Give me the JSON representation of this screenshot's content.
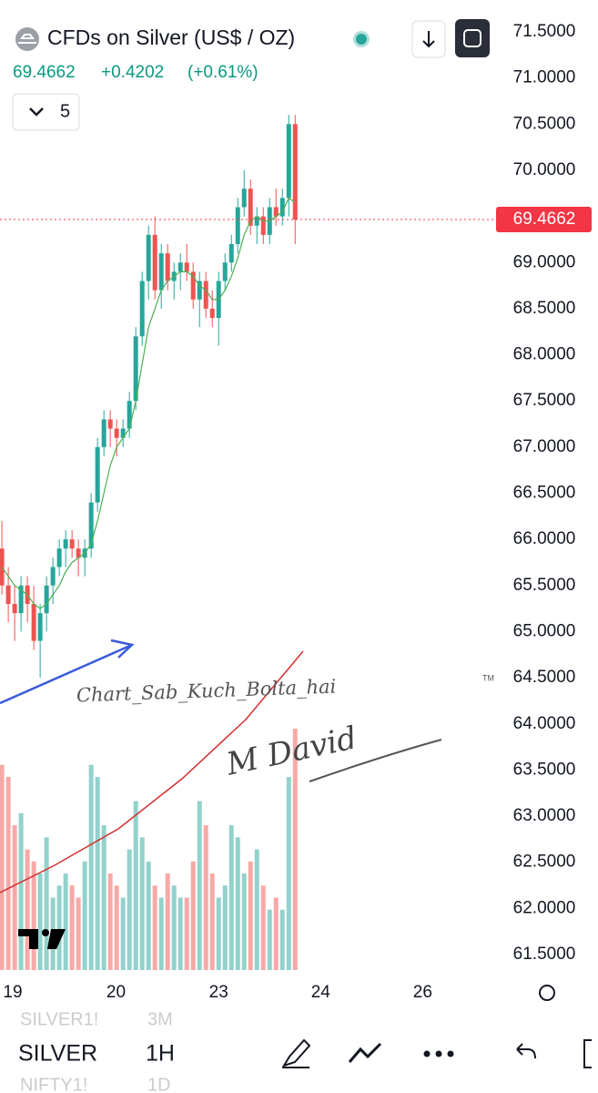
{
  "header": {
    "title": "CFDs on Silver (US$ / OZ)",
    "price": "69.4662",
    "change": "+0.4202",
    "change_pct": "(+0.61%)",
    "interval_button": "5"
  },
  "chart_data": {
    "type": "candlestick",
    "up_color": "#26a69a",
    "down_color": "#ef5350",
    "candles": [
      [
        65.9,
        66.2,
        65.4,
        65.5
      ],
      [
        65.5,
        65.7,
        65.1,
        65.3
      ],
      [
        65.3,
        65.5,
        64.9,
        65.2
      ],
      [
        65.2,
        65.6,
        65.0,
        65.5
      ],
      [
        65.5,
        65.6,
        65.1,
        65.3
      ],
      [
        65.3,
        65.5,
        64.8,
        64.9
      ],
      [
        64.9,
        65.3,
        64.5,
        65.2
      ],
      [
        65.2,
        65.6,
        65.0,
        65.5
      ],
      [
        65.5,
        65.8,
        65.3,
        65.7
      ],
      [
        65.7,
        66.0,
        65.6,
        65.9
      ],
      [
        65.9,
        66.1,
        65.7,
        66.0
      ],
      [
        66.0,
        66.1,
        65.8,
        65.9
      ],
      [
        65.9,
        66.0,
        65.6,
        65.8
      ],
      [
        65.8,
        66.0,
        65.6,
        65.9
      ],
      [
        65.9,
        66.5,
        65.8,
        66.4
      ],
      [
        66.4,
        67.1,
        66.3,
        67.0
      ],
      [
        67.0,
        67.4,
        66.9,
        67.3
      ],
      [
        67.3,
        67.4,
        67.0,
        67.2
      ],
      [
        67.2,
        67.3,
        66.9,
        67.1
      ],
      [
        67.1,
        67.3,
        67.0,
        67.2
      ],
      [
        67.2,
        67.6,
        67.1,
        67.5
      ],
      [
        67.5,
        68.3,
        67.4,
        68.2
      ],
      [
        68.2,
        68.9,
        68.1,
        68.8
      ],
      [
        68.8,
        69.4,
        68.6,
        69.3
      ],
      [
        69.3,
        69.5,
        68.6,
        68.7
      ],
      [
        68.7,
        69.2,
        68.5,
        69.1
      ],
      [
        69.1,
        69.2,
        68.7,
        68.8
      ],
      [
        68.8,
        69.0,
        68.6,
        68.9
      ],
      [
        68.9,
        69.1,
        68.7,
        69.0
      ],
      [
        69.0,
        69.2,
        68.8,
        68.9
      ],
      [
        68.9,
        69.0,
        68.5,
        68.6
      ],
      [
        68.6,
        68.9,
        68.3,
        68.8
      ],
      [
        68.8,
        68.9,
        68.4,
        68.5
      ],
      [
        68.5,
        68.7,
        68.3,
        68.4
      ],
      [
        68.4,
        68.9,
        68.1,
        68.8
      ],
      [
        68.8,
        69.1,
        68.7,
        69.0
      ],
      [
        69.0,
        69.3,
        68.9,
        69.2
      ],
      [
        69.2,
        69.7,
        69.1,
        69.6
      ],
      [
        69.6,
        70.0,
        69.5,
        69.8
      ],
      [
        69.8,
        69.9,
        69.3,
        69.4
      ],
      [
        69.4,
        69.6,
        69.2,
        69.5
      ],
      [
        69.5,
        69.6,
        69.2,
        69.3
      ],
      [
        69.3,
        69.7,
        69.2,
        69.6
      ],
      [
        69.6,
        69.8,
        69.4,
        69.5
      ],
      [
        69.5,
        69.8,
        69.4,
        69.7
      ],
      [
        69.7,
        70.6,
        69.5,
        70.5
      ],
      [
        70.5,
        70.6,
        69.2,
        69.4662
      ]
    ],
    "ma": {
      "color": "#4caf50",
      "values": [
        65.7,
        65.6,
        65.5,
        65.45,
        65.4,
        65.3,
        65.25,
        65.3,
        65.4,
        65.5,
        65.65,
        65.75,
        65.8,
        65.85,
        65.95,
        66.2,
        66.5,
        66.8,
        67.0,
        67.1,
        67.2,
        67.5,
        67.9,
        68.3,
        68.5,
        68.7,
        68.8,
        68.85,
        68.9,
        68.9,
        68.85,
        68.75,
        68.7,
        68.6,
        68.6,
        68.7,
        68.85,
        69.05,
        69.3,
        69.45,
        69.5,
        69.45,
        69.45,
        69.5,
        69.55,
        69.7,
        69.65
      ]
    },
    "volume": {
      "ylim": [
        0,
        100
      ],
      "values": [
        85,
        80,
        60,
        65,
        50,
        45,
        40,
        55,
        30,
        35,
        40,
        35,
        30,
        45,
        85,
        80,
        60,
        40,
        35,
        30,
        50,
        70,
        55,
        45,
        35,
        30,
        40,
        35,
        30,
        30,
        45,
        70,
        60,
        40,
        30,
        35,
        60,
        55,
        40,
        45,
        50,
        35,
        25,
        30,
        25,
        80,
        100
      ]
    },
    "ylim": [
      61.5,
      71.5
    ],
    "yticks": [
      {
        "value": 71.5,
        "label": "71.5000"
      },
      {
        "value": 71,
        "label": "71.0000"
      },
      {
        "value": 70.5,
        "label": "70.5000"
      },
      {
        "value": 70,
        "label": "70.0000"
      },
      {
        "value": 69,
        "label": "69.0000"
      },
      {
        "value": 68.5,
        "label": "68.5000"
      },
      {
        "value": 68,
        "label": "68.0000"
      },
      {
        "value": 67.5,
        "label": "67.5000"
      },
      {
        "value": 67,
        "label": "67.0000"
      },
      {
        "value": 66.5,
        "label": "66.5000"
      },
      {
        "value": 66,
        "label": "66.0000"
      },
      {
        "value": 65.5,
        "label": "65.5000"
      },
      {
        "value": 65,
        "label": "65.0000"
      },
      {
        "value": 64.5,
        "label": "64.5000"
      },
      {
        "value": 64,
        "label": "64.0000"
      },
      {
        "value": 63.5,
        "label": "63.5000"
      },
      {
        "value": 63,
        "label": "63.0000"
      },
      {
        "value": 62.5,
        "label": "62.5000"
      },
      {
        "value": 62,
        "label": "62.0000"
      },
      {
        "value": 61.5,
        "label": "61.5000"
      }
    ],
    "xlim": [
      -0.3,
      76.8
    ],
    "xticks": [
      {
        "value": 1.7,
        "label": "19"
      },
      {
        "value": 17.9,
        "label": "20"
      },
      {
        "value": 34,
        "label": "23"
      },
      {
        "value": 50,
        "label": "24"
      },
      {
        "value": 66,
        "label": "26"
      }
    ],
    "last_price": 69.4662,
    "last_price_color": "#f23645",
    "annotation": "Chart_Sab_Kuch_Bolta_hai",
    "trademark": "TM",
    "signature": "M David"
  },
  "toolbar": {
    "symbol": "SILVER",
    "interval": "1H",
    "ghost": [
      "SILVER1!",
      "3M",
      "NIFTY1!",
      "1D"
    ]
  }
}
